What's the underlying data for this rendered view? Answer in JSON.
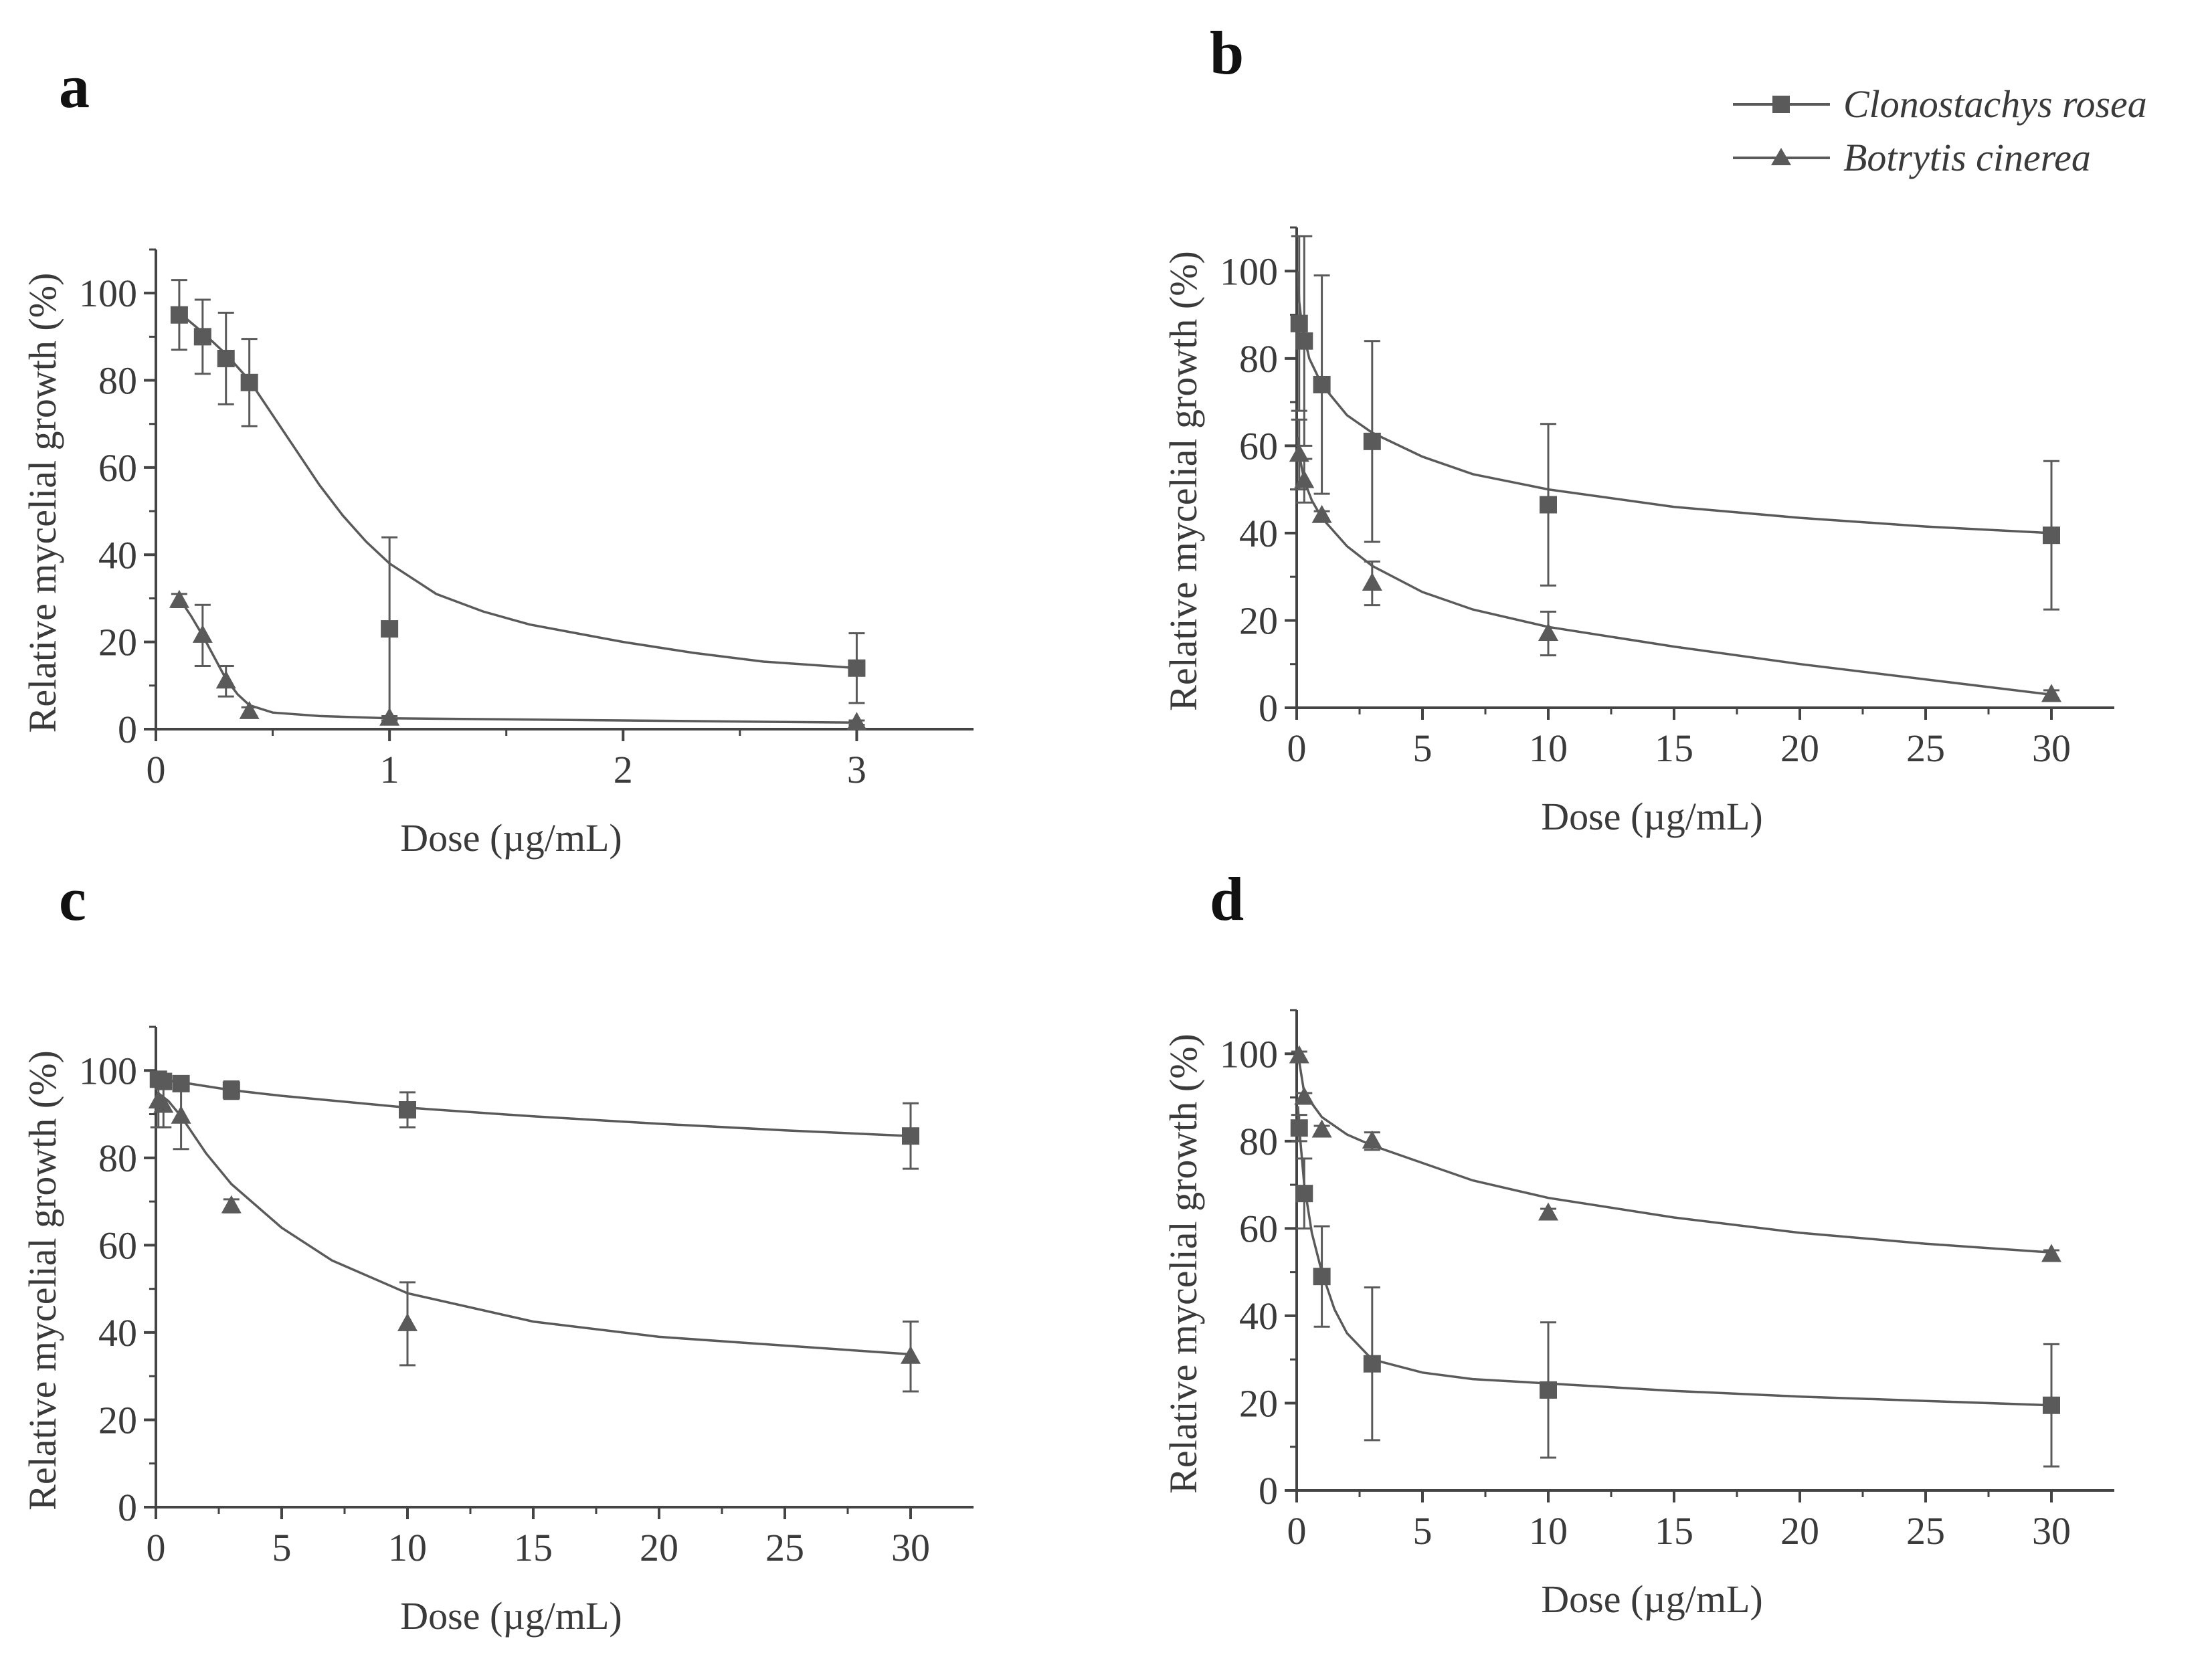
{
  "legend": {
    "position": "top-right",
    "entries": [
      {
        "label": "Clonostachys rosea",
        "marker": "square"
      },
      {
        "label": "Botrytis cinerea",
        "marker": "triangle"
      }
    ]
  },
  "colors": {
    "series": "#5a5a5a",
    "axis": "#444444",
    "text": "#3a3a3a"
  },
  "chart_data": [
    {
      "panel": "a",
      "type": "line",
      "xlabel": "Dose (µg/mL)",
      "ylabel": "Relative mycelial growth (%)",
      "xlim": [
        0,
        3.5
      ],
      "ylim": [
        0,
        110
      ],
      "xticks": [
        0,
        1,
        2,
        3
      ],
      "xtick_labels": [
        "0",
        "1",
        "2",
        "3"
      ],
      "yticks": [
        0,
        20,
        40,
        60,
        80,
        100
      ],
      "ytick_labels": [
        "0",
        "20",
        "40",
        "60",
        "80",
        "100"
      ],
      "series": [
        {
          "name": "Clonostachys rosea",
          "marker": "square",
          "x": [
            0.1,
            0.2,
            0.3,
            0.4,
            1,
            3
          ],
          "y": [
            95,
            90,
            85,
            79.5,
            23,
            14
          ],
          "err": [
            8,
            8.5,
            10.5,
            10,
            21,
            8
          ],
          "fit": [
            [
              0.1,
              95.5
            ],
            [
              0.2,
              91
            ],
            [
              0.3,
              86
            ],
            [
              0.4,
              80
            ],
            [
              0.5,
              72
            ],
            [
              0.6,
              64
            ],
            [
              0.7,
              56
            ],
            [
              0.8,
              49
            ],
            [
              0.9,
              43
            ],
            [
              1.0,
              38
            ],
            [
              1.2,
              31
            ],
            [
              1.4,
              27
            ],
            [
              1.6,
              24
            ],
            [
              1.8,
              22
            ],
            [
              2.0,
              20
            ],
            [
              2.3,
              17.5
            ],
            [
              2.6,
              15.5
            ],
            [
              3.0,
              14
            ]
          ]
        },
        {
          "name": "Botrytis cinerea",
          "marker": "triangle",
          "x": [
            0.1,
            0.2,
            0.3,
            0.4,
            1,
            3
          ],
          "y": [
            29.5,
            21.5,
            11,
            4,
            2.5,
            1.5
          ],
          "err": [
            1.5,
            7,
            3.5,
            1,
            0.5,
            0.5
          ],
          "fit": [
            [
              0.1,
              30
            ],
            [
              0.15,
              26
            ],
            [
              0.2,
              21.5
            ],
            [
              0.25,
              16.5
            ],
            [
              0.3,
              11.5
            ],
            [
              0.35,
              8
            ],
            [
              0.4,
              5.5
            ],
            [
              0.5,
              3.8
            ],
            [
              0.7,
              3
            ],
            [
              1.0,
              2.5
            ],
            [
              2.0,
              2
            ],
            [
              3.0,
              1.5
            ]
          ]
        }
      ]
    },
    {
      "panel": "b",
      "type": "line",
      "xlabel": "Dose (µg/mL)",
      "ylabel": "Relative mycelial growth (%)",
      "xlim": [
        0,
        32.5
      ],
      "ylim": [
        0,
        110
      ],
      "xticks": [
        0,
        5,
        10,
        15,
        20,
        25,
        30
      ],
      "xtick_labels": [
        "0",
        "5",
        "10",
        "15",
        "20",
        "25",
        "30"
      ],
      "yticks": [
        0,
        20,
        40,
        60,
        80,
        100
      ],
      "ytick_labels": [
        "0",
        "20",
        "40",
        "60",
        "80",
        "100"
      ],
      "series": [
        {
          "name": "Clonostachys rosea",
          "marker": "square",
          "x": [
            0.1,
            0.3,
            1,
            3,
            10,
            30
          ],
          "y": [
            88,
            84,
            74,
            61,
            46.5,
            39.5
          ],
          "err": [
            20,
            24,
            25,
            23,
            18.5,
            17
          ],
          "fit": [
            [
              0.05,
              100
            ],
            [
              0.1,
              93
            ],
            [
              0.2,
              88
            ],
            [
              0.3,
              85
            ],
            [
              0.5,
              80
            ],
            [
              1,
              74
            ],
            [
              2,
              67
            ],
            [
              3,
              63
            ],
            [
              5,
              57.5
            ],
            [
              7,
              53.5
            ],
            [
              10,
              50
            ],
            [
              15,
              46
            ],
            [
              20,
              43.5
            ],
            [
              25,
              41.5
            ],
            [
              30,
              40
            ]
          ]
        },
        {
          "name": "Botrytis cinerea",
          "marker": "triangle",
          "x": [
            0.1,
            0.3,
            1,
            3,
            10,
            30
          ],
          "y": [
            58,
            52,
            44,
            28.5,
            17,
            3
          ],
          "err": [
            8,
            5,
            1,
            5,
            5,
            1
          ],
          "fit": [
            [
              0.05,
              62
            ],
            [
              0.1,
              58
            ],
            [
              0.3,
              52
            ],
            [
              0.6,
              47.5
            ],
            [
              1,
              43.5
            ],
            [
              2,
              37
            ],
            [
              3,
              32.5
            ],
            [
              5,
              26.5
            ],
            [
              7,
              22.5
            ],
            [
              10,
              18.5
            ],
            [
              15,
              14
            ],
            [
              20,
              10
            ],
            [
              25,
              6.5
            ],
            [
              30,
              3
            ]
          ]
        }
      ]
    },
    {
      "panel": "c",
      "type": "line",
      "xlabel": "Dose (µg/mL)",
      "ylabel": "Relative mycelial growth (%)",
      "xlim": [
        0,
        32.5
      ],
      "ylim": [
        0,
        110
      ],
      "xticks": [
        0,
        5,
        10,
        15,
        20,
        25,
        30
      ],
      "xtick_labels": [
        "0",
        "5",
        "10",
        "15",
        "20",
        "25",
        "30"
      ],
      "yticks": [
        0,
        20,
        40,
        60,
        80,
        100
      ],
      "ytick_labels": [
        "0",
        "20",
        "40",
        "60",
        "80",
        "100"
      ],
      "series": [
        {
          "name": "Clonostachys rosea",
          "marker": "square",
          "x": [
            0.1,
            0.3,
            1,
            3,
            10,
            30
          ],
          "y": [
            98,
            97.5,
            97,
            95.5,
            91,
            85
          ],
          "err": [
            1,
            1,
            1,
            2,
            4,
            7.5
          ],
          "fit": [
            [
              0.05,
              98
            ],
            [
              1,
              97.3
            ],
            [
              3,
              95.5
            ],
            [
              5,
              94.2
            ],
            [
              10,
              91.5
            ],
            [
              15,
              89.5
            ],
            [
              20,
              87.8
            ],
            [
              25,
              86.3
            ],
            [
              30,
              85
            ]
          ]
        },
        {
          "name": "Botrytis cinerea",
          "marker": "triangle",
          "x": [
            0.1,
            0.3,
            1,
            3,
            10,
            30
          ],
          "y": [
            93,
            92,
            89.5,
            69,
            42,
            34.5
          ],
          "err": [
            6,
            5,
            7.5,
            1.5,
            9.5,
            8
          ],
          "fit": [
            [
              0.05,
              95
            ],
            [
              0.5,
              93
            ],
            [
              1,
              89.5
            ],
            [
              2,
              81
            ],
            [
              3,
              74
            ],
            [
              5,
              64
            ],
            [
              7,
              56.5
            ],
            [
              10,
              49
            ],
            [
              15,
              42.5
            ],
            [
              20,
              39
            ],
            [
              25,
              37
            ],
            [
              30,
              35
            ]
          ]
        }
      ]
    },
    {
      "panel": "d",
      "type": "line",
      "xlabel": "Dose (µg/mL)",
      "ylabel": "Relative mycelial growth (%)",
      "xlim": [
        0,
        32.5
      ],
      "ylim": [
        0,
        110
      ],
      "xticks": [
        0,
        5,
        10,
        15,
        20,
        25,
        30
      ],
      "xtick_labels": [
        "0",
        "5",
        "10",
        "15",
        "20",
        "25",
        "30"
      ],
      "yticks": [
        0,
        20,
        40,
        60,
        80,
        100
      ],
      "ytick_labels": [
        "0",
        "20",
        "40",
        "60",
        "80",
        "100"
      ],
      "series": [
        {
          "name": "Clonostachys rosea",
          "marker": "square",
          "x": [
            0.1,
            0.3,
            1,
            3,
            10,
            30
          ],
          "y": [
            83,
            68,
            49,
            29,
            23,
            19.5
          ],
          "err": [
            3,
            8,
            11.5,
            17.5,
            15.5,
            14
          ],
          "fit": [
            [
              0.05,
              88
            ],
            [
              0.1,
              83
            ],
            [
              0.3,
              70
            ],
            [
              0.6,
              59
            ],
            [
              1,
              50
            ],
            [
              1.5,
              41.5
            ],
            [
              2,
              36
            ],
            [
              3,
              30
            ],
            [
              5,
              27
            ],
            [
              7,
              25.5
            ],
            [
              10,
              24.5
            ],
            [
              15,
              22.8
            ],
            [
              20,
              21.5
            ],
            [
              25,
              20.5
            ],
            [
              30,
              19.5
            ]
          ]
        },
        {
          "name": "Botrytis cinerea",
          "marker": "triangle",
          "x": [
            0.1,
            0.3,
            1,
            3,
            10,
            30
          ],
          "y": [
            99.5,
            90,
            82.5,
            80,
            63.5,
            54
          ],
          "err": [
            1,
            1,
            1,
            2,
            1,
            1
          ],
          "fit": [
            [
              0.05,
              100
            ],
            [
              0.3,
              91
            ],
            [
              1,
              85.5
            ],
            [
              2,
              81.5
            ],
            [
              3,
              79
            ],
            [
              5,
              75
            ],
            [
              7,
              71
            ],
            [
              10,
              67
            ],
            [
              15,
              62.5
            ],
            [
              20,
              59
            ],
            [
              25,
              56.5
            ],
            [
              30,
              54.5
            ]
          ]
        }
      ]
    }
  ]
}
